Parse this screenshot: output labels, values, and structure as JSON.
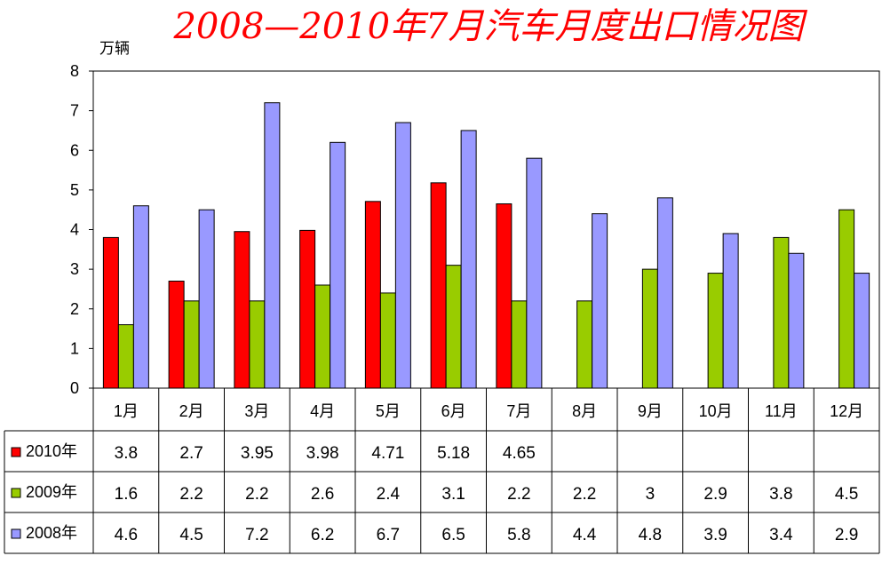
{
  "chart_data": {
    "type": "bar",
    "title": "2008—2010年7月汽车月度出口情况图",
    "ylabel": "万辆",
    "ylim": [
      0,
      8
    ],
    "yticks": [
      "0",
      "1",
      "2",
      "3",
      "4",
      "5",
      "6",
      "7",
      "8"
    ],
    "grid": false,
    "legend": "data-table-left",
    "categories": [
      "1月",
      "2月",
      "3月",
      "4月",
      "5月",
      "6月",
      "7月",
      "8月",
      "9月",
      "10月",
      "11月",
      "12月"
    ],
    "series": [
      {
        "name": "2010年",
        "color": "#ff0000",
        "values": [
          3.8,
          2.7,
          3.95,
          3.98,
          4.71,
          5.18,
          4.65,
          null,
          null,
          null,
          null,
          null
        ],
        "labels": [
          "3.8",
          "2.7",
          "3.95",
          "3.98",
          "4.71",
          "5.18",
          "4.65",
          "",
          "",
          "",
          "",
          ""
        ]
      },
      {
        "name": "2009年",
        "color": "#99cc00",
        "values": [
          1.6,
          2.2,
          2.2,
          2.6,
          2.4,
          3.1,
          2.2,
          2.2,
          3,
          2.9,
          3.8,
          4.5
        ],
        "labels": [
          "1.6",
          "2.2",
          "2.2",
          "2.6",
          "2.4",
          "3.1",
          "2.2",
          "2.2",
          "3",
          "2.9",
          "3.8",
          "4.5"
        ]
      },
      {
        "name": "2008年",
        "color": "#9999ff",
        "values": [
          4.6,
          4.5,
          7.2,
          6.2,
          6.7,
          6.5,
          5.8,
          4.4,
          4.8,
          3.9,
          3.4,
          2.9
        ],
        "labels": [
          "4.6",
          "4.5",
          "7.2",
          "6.2",
          "6.7",
          "6.5",
          "5.8",
          "4.4",
          "4.8",
          "3.9",
          "3.4",
          "2.9"
        ]
      }
    ]
  }
}
